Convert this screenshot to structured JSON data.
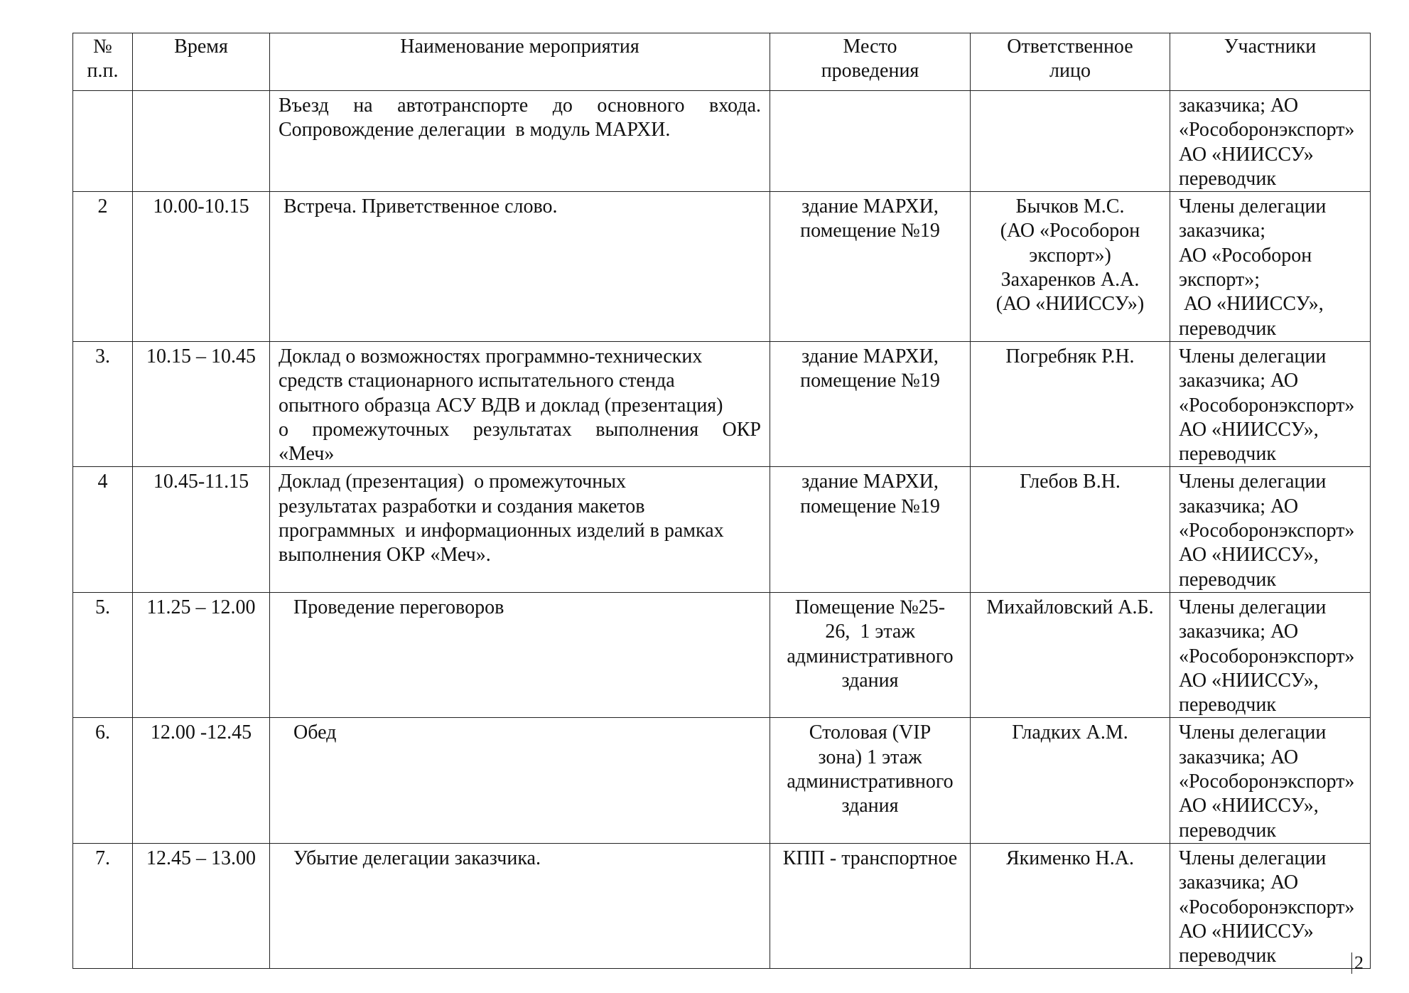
{
  "headers": [
    "№\nп.п.",
    "Время",
    "Наименование мероприятия",
    "Место\nпроведения",
    "Ответственное\nлицо",
    "Участники"
  ],
  "rows": [
    {
      "num": "",
      "time": "",
      "event": [
        {
          "t": "Въезд на автотранспорте до основного входа.",
          "j": true
        },
        {
          "t": "Сопровождение делегации  в модуль МАРХИ."
        }
      ],
      "place": [],
      "responsible": [],
      "participants": [
        "заказчика; АО",
        "«Рособоронэкспорт»",
        "АО «НИИССУ»",
        "переводчик"
      ]
    },
    {
      "num": "2",
      "time": "10.00-10.15",
      "event": [
        {
          "t": " Встреча. Приветственное слово."
        }
      ],
      "place": [
        "здание МАРХИ,",
        "помещение №19"
      ],
      "responsible": [
        "Бычков М.С.",
        "(АО «Рособорон",
        "экспорт»)",
        "Захаренков А.А.",
        "(АО «НИИССУ»)"
      ],
      "participants": [
        "Члены делегации",
        "заказчика;",
        "АО «Рособорон",
        "экспорт»;",
        " АО «НИИССУ»,",
        "переводчик"
      ]
    },
    {
      "num": "3.",
      "time": "10.15 – 10.45",
      "event": [
        {
          "t": "Доклад о возможностях программно-технических"
        },
        {
          "t": "средств стационарного испытательного стенда"
        },
        {
          "t": "опытного образца АСУ ВДВ и доклад (презентация)"
        },
        {
          "t": "о промежуточных результатах выполнения ОКР",
          "j": true
        },
        {
          "t": "«Меч»"
        }
      ],
      "place": [
        "здание МАРХИ,",
        "помещение №19"
      ],
      "responsible": [
        "Погребняк Р.Н."
      ],
      "participants": [
        "Члены делегации",
        "заказчика; АО",
        "«Рособоронэкспорт»",
        "АО «НИИССУ»,",
        "переводчик"
      ]
    },
    {
      "num": "4",
      "time": "10.45-11.15",
      "event": [
        {
          "t": "Доклад (презентация)  о промежуточных"
        },
        {
          "t": "результатах разработки и создания макетов"
        },
        {
          "t": "программных  и информационных изделий в рамках"
        },
        {
          "t": "выполнения ОКР «Меч»."
        }
      ],
      "place": [
        "здание МАРХИ,",
        "помещение №19"
      ],
      "responsible": [
        "Глебов В.Н."
      ],
      "participants": [
        "Члены делегации",
        "заказчика; АО",
        "«Рособоронэкспорт»",
        "АО «НИИССУ»,",
        "переводчик"
      ]
    },
    {
      "num": "5.",
      "time": "11.25 – 12.00",
      "event": [
        {
          "t": "   Проведение переговоров"
        }
      ],
      "place": [
        "Помещение №25-",
        "26,  1 этаж",
        "административного",
        "здания"
      ],
      "responsible": [
        "Михайловский А.Б."
      ],
      "participants": [
        "Члены делегации",
        "заказчика; АО",
        "«Рособоронэкспорт»",
        "АО «НИИССУ»,",
        "переводчик"
      ]
    },
    {
      "num": "6.",
      "time": "12.00 -12.45",
      "event": [
        {
          "t": "   Обед"
        }
      ],
      "place": [
        "Столовая (VIP",
        "зона) 1 этаж",
        "административного",
        "здания"
      ],
      "responsible": [
        "Гладких А.М."
      ],
      "participants": [
        "Члены делегации",
        "заказчика; АО",
        "«Рособоронэкспорт»",
        "АО «НИИССУ»,",
        "переводчик"
      ]
    },
    {
      "num": "7.",
      "time": "12.45 – 13.00",
      "event": [
        {
          "t": "   Убытие делегации заказчика."
        }
      ],
      "place": [
        "КПП - транспортное"
      ],
      "responsible": [
        "Якименко Н.А."
      ],
      "participants": [
        "Члены делегации",
        "заказчика; АО",
        "«Рособоронэкспорт»",
        "АО «НИИССУ»",
        "переводчик"
      ]
    }
  ],
  "page_number": "2"
}
